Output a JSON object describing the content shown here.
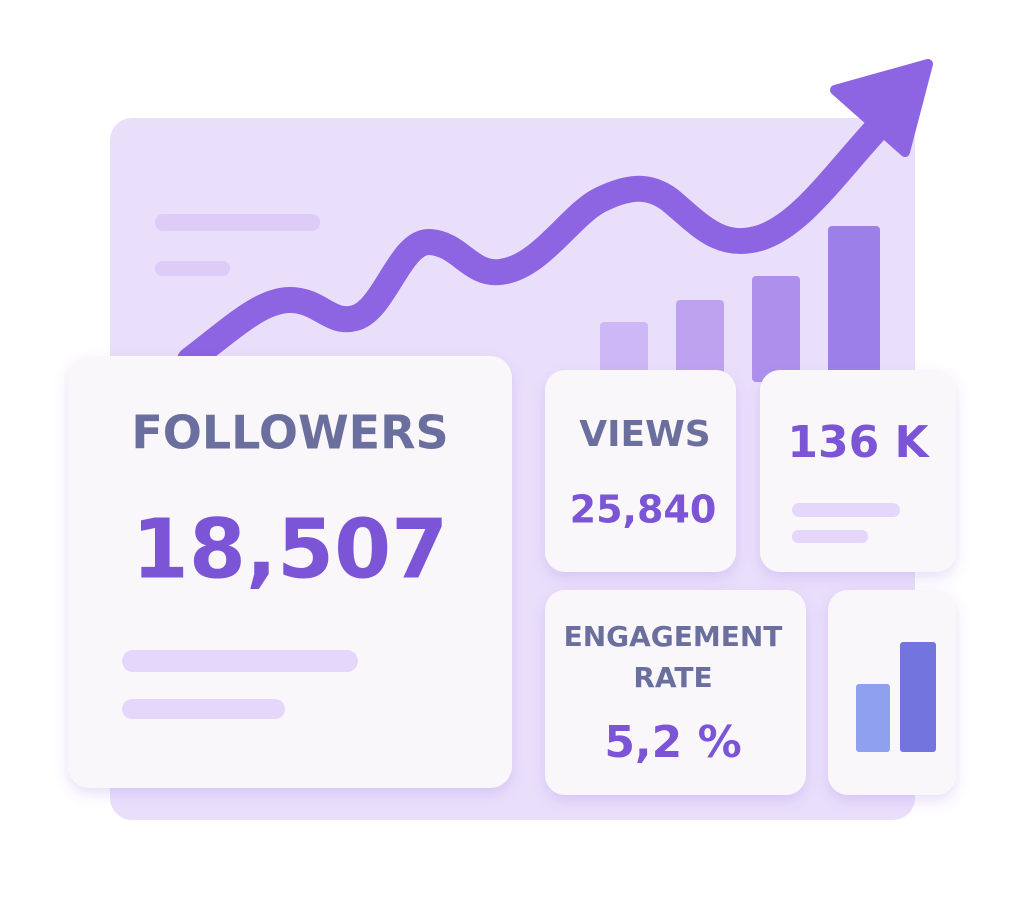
{
  "followers": {
    "label": "FOLLOWERS",
    "value": "18,507"
  },
  "views": {
    "label": "VIEWS",
    "value": "25,840"
  },
  "reach": {
    "value": "136 K"
  },
  "engagement": {
    "label_lines": [
      "ENGAGEMENT",
      "RATE"
    ],
    "value": "5,2 %"
  }
}
